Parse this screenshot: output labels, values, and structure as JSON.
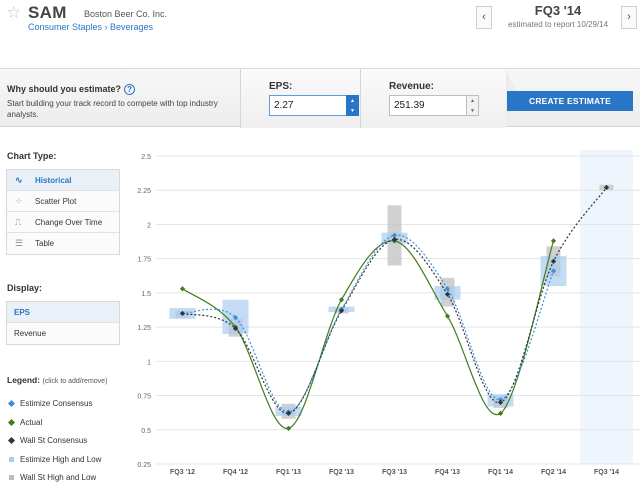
{
  "header": {
    "ticker": "SAM",
    "company": "Boston Beer Co. Inc.",
    "breadcrumb": "Consumer Staples › Beverages",
    "quarter": "FQ3 '14",
    "report_date": "estimated to report 10/29/14"
  },
  "estimate_bar": {
    "why_title": "Why should you estimate?",
    "why_desc": "Start building your track record to compete with top industry analysts.",
    "eps_label": "EPS:",
    "eps_value": "2.27",
    "revenue_label": "Revenue:",
    "revenue_value": "251.39",
    "create_label": "CREATE ESTIMATE"
  },
  "sidebar": {
    "chart_type_label": "Chart Type:",
    "chart_types": [
      {
        "label": "Historical",
        "icon": "wave-icon",
        "glyph": "∿"
      },
      {
        "label": "Scatter Plot",
        "icon": "scatter-icon",
        "glyph": "⁘"
      },
      {
        "label": "Change Over Time",
        "icon": "step-icon",
        "glyph": "⎍"
      },
      {
        "label": "Table",
        "icon": "table-icon",
        "glyph": "☰"
      }
    ],
    "display_label": "Display:",
    "display_options": [
      "EPS",
      "Revenue"
    ],
    "legend_label": "Legend:",
    "legend_hint": "(click to add/remove)",
    "legend_items": [
      {
        "label": "Estimize Consensus",
        "color": "#3b8fdc"
      },
      {
        "label": "Actual",
        "color": "#3f7d1d"
      },
      {
        "label": "Wall St Consensus",
        "color": "#333333"
      },
      {
        "label": "Estimize High and Low",
        "color": "#a9cdf0"
      },
      {
        "label": "Wall St High and Low",
        "color": "#bdbdbd"
      }
    ]
  },
  "colors": {
    "accent": "#2a76c6",
    "estimize": "#3b8fdc",
    "actual": "#3f7d1d",
    "wallst": "#333333"
  },
  "chart_data": {
    "type": "line",
    "categories": [
      "FQ3 '12",
      "FQ4 '12",
      "FQ1 '13",
      "FQ2 '13",
      "FQ3 '13",
      "FQ4 '13",
      "FQ1 '14",
      "FQ2 '14",
      "FQ3 '14"
    ],
    "ylim": [
      0.25,
      2.5
    ],
    "yticks": [
      "0.25",
      "0.5",
      "0.75",
      "1",
      "1.25",
      "1.5",
      "1.75",
      "2",
      "2.25",
      "2.5"
    ],
    "grid": true,
    "series": [
      {
        "name": "Estimize Consensus",
        "values": [
          1.35,
          1.32,
          0.63,
          1.38,
          1.92,
          1.53,
          0.72,
          1.66,
          null
        ]
      },
      {
        "name": "Actual",
        "values": [
          1.53,
          1.25,
          0.51,
          1.45,
          1.88,
          1.33,
          0.62,
          1.88,
          null
        ]
      },
      {
        "name": "Wall St Consensus",
        "values": [
          1.35,
          1.24,
          0.62,
          1.37,
          1.89,
          1.49,
          0.7,
          1.73,
          2.27
        ]
      }
    ],
    "estimize_range": [
      [
        1.31,
        1.39
      ],
      [
        1.2,
        1.45
      ],
      [
        0.6,
        0.67
      ],
      [
        1.36,
        1.4
      ],
      [
        1.86,
        1.94
      ],
      [
        1.45,
        1.55
      ],
      [
        0.67,
        0.76
      ],
      [
        1.55,
        1.77
      ],
      null
    ],
    "wallst_range": [
      [
        1.32,
        1.37
      ],
      [
        1.18,
        1.31
      ],
      [
        0.58,
        0.69
      ],
      [
        1.35,
        1.39
      ],
      [
        1.7,
        2.14
      ],
      [
        1.4,
        1.61
      ],
      [
        0.66,
        0.75
      ],
      [
        1.62,
        1.84
      ],
      [
        2.25,
        2.29
      ]
    ]
  }
}
